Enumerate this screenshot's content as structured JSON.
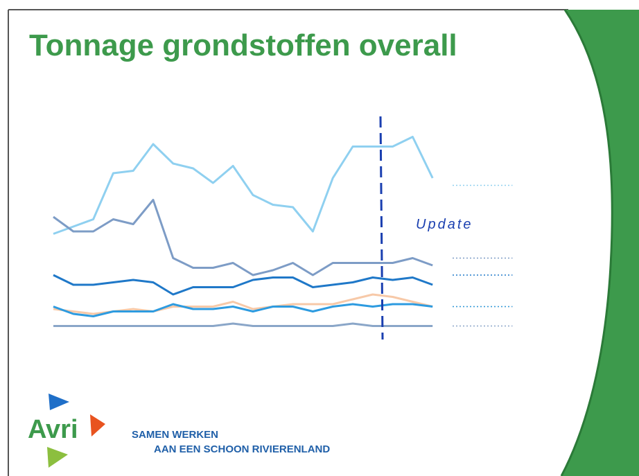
{
  "header": {
    "title": "Tonnage grondstoffen overall"
  },
  "chart_data": {
    "type": "line",
    "annotation": "Update",
    "ylim": [
      0,
      9
    ],
    "projection_from": 19,
    "series": [
      {
        "color": "#8fd0f0",
        "values": [
          4.1,
          4.4,
          4.7,
          6.6,
          6.7,
          7.8,
          7.0,
          6.8,
          6.2,
          6.9,
          5.7,
          5.3,
          5.2,
          4.2,
          6.4,
          7.7,
          7.7,
          7.7,
          8.1,
          6.4,
          6.1,
          6.1,
          6.1,
          6.1
        ]
      },
      {
        "color": "#7d9cc6",
        "values": [
          4.8,
          4.2,
          4.2,
          4.7,
          4.5,
          5.5,
          3.1,
          2.7,
          2.7,
          2.9,
          2.4,
          2.6,
          2.9,
          2.4,
          2.9,
          2.9,
          2.9,
          2.9,
          3.1,
          2.8,
          3.1,
          3.1,
          3.1,
          3.1
        ]
      },
      {
        "color": "#1f78c8",
        "values": [
          2.4,
          2.0,
          2.0,
          2.1,
          2.2,
          2.1,
          1.6,
          1.9,
          1.9,
          1.9,
          2.2,
          2.3,
          2.3,
          1.9,
          2.0,
          2.1,
          2.3,
          2.2,
          2.3,
          2.0,
          2.4,
          2.4,
          2.4,
          2.4
        ]
      },
      {
        "color": "#f7c9a8",
        "values": [
          1.0,
          0.9,
          0.8,
          0.9,
          1.0,
          0.9,
          1.1,
          1.1,
          1.1,
          1.3,
          1.0,
          1.1,
          1.2,
          1.2,
          1.2,
          1.4,
          1.6,
          1.5,
          1.3,
          1.1,
          1.1,
          1.1,
          1.1,
          1.1
        ]
      },
      {
        "color": "#2d9be0",
        "values": [
          1.1,
          0.8,
          0.7,
          0.9,
          0.9,
          0.9,
          1.2,
          1.0,
          1.0,
          1.1,
          0.9,
          1.1,
          1.1,
          0.9,
          1.1,
          1.2,
          1.1,
          1.2,
          1.2,
          1.1,
          1.1,
          1.1,
          1.1,
          1.1
        ]
      },
      {
        "color": "#8aa6c8",
        "values": [
          0.3,
          0.3,
          0.3,
          0.3,
          0.3,
          0.3,
          0.3,
          0.3,
          0.3,
          0.4,
          0.3,
          0.3,
          0.3,
          0.3,
          0.3,
          0.4,
          0.3,
          0.3,
          0.3,
          0.3,
          0.3,
          0.3,
          0.3,
          0.3
        ]
      }
    ]
  },
  "logo": {
    "name": "Avri",
    "slogan_line1": "SAMEN WERKEN",
    "slogan_line2": "AAN EEN SCHOON RIVIERENLAND"
  }
}
